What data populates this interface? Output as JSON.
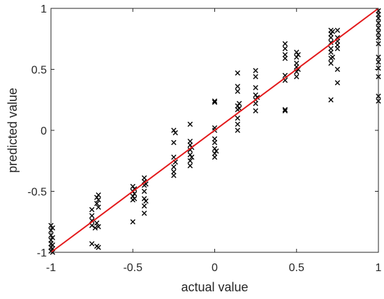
{
  "chart_data": {
    "type": "scatter",
    "title": "",
    "xlabel": "actual value",
    "ylabel": "predicted value",
    "xlim": [
      -1,
      1
    ],
    "ylim": [
      -1,
      1
    ],
    "xticks": [
      -1,
      -0.5,
      0,
      0.5,
      1
    ],
    "yticks": [
      -1,
      -0.5,
      0,
      0.5,
      1
    ],
    "xtick_labels": [
      "-1",
      "-0.5",
      "0",
      "0.5",
      "1"
    ],
    "ytick_labels": [
      "-1",
      "-0.5",
      "0",
      "0.5",
      "1"
    ],
    "grid": false,
    "marker": "x",
    "marker_color": "#000000",
    "reference_line": {
      "from": [
        -1,
        -1
      ],
      "to": [
        1,
        1
      ],
      "color": "#e31a1c"
    },
    "series": [
      {
        "points": [
          [
            -1,
            -0.78
          ],
          [
            -1,
            -0.82
          ],
          [
            -1,
            -0.86
          ],
          [
            -1,
            -0.9
          ],
          [
            -1,
            -0.93
          ],
          [
            -1,
            -0.96
          ],
          [
            -1,
            -0.99
          ],
          [
            -0.99,
            -0.8
          ],
          [
            -0.99,
            -0.88
          ],
          [
            -0.99,
            -0.94
          ],
          [
            -0.99,
            -0.97
          ],
          [
            -0.99,
            -1.0
          ],
          [
            -0.75,
            -0.65
          ],
          [
            -0.75,
            -0.7
          ],
          [
            -0.75,
            -0.74
          ],
          [
            -0.75,
            -0.78
          ],
          [
            -0.75,
            -0.93
          ],
          [
            -0.73,
            -0.8
          ],
          [
            -0.72,
            -0.55
          ],
          [
            -0.72,
            -0.6
          ],
          [
            -0.72,
            -0.76
          ],
          [
            -0.72,
            -0.95
          ],
          [
            -0.71,
            -0.53
          ],
          [
            -0.71,
            -0.57
          ],
          [
            -0.71,
            -0.63
          ],
          [
            -0.71,
            -0.79
          ],
          [
            -0.71,
            -0.96
          ],
          [
            -0.5,
            -0.46
          ],
          [
            -0.5,
            -0.5
          ],
          [
            -0.5,
            -0.54
          ],
          [
            -0.5,
            -0.57
          ],
          [
            -0.5,
            -0.75
          ],
          [
            -0.49,
            -0.48
          ],
          [
            -0.49,
            -0.52
          ],
          [
            -0.49,
            -0.56
          ],
          [
            -0.43,
            -0.39
          ],
          [
            -0.43,
            -0.42
          ],
          [
            -0.43,
            -0.45
          ],
          [
            -0.43,
            -0.5
          ],
          [
            -0.43,
            -0.56
          ],
          [
            -0.43,
            -0.62
          ],
          [
            -0.43,
            -0.68
          ],
          [
            -0.42,
            -0.44
          ],
          [
            -0.42,
            -0.58
          ],
          [
            -0.25,
            0.0
          ],
          [
            -0.25,
            -0.1
          ],
          [
            -0.25,
            -0.22
          ],
          [
            -0.25,
            -0.3
          ],
          [
            -0.25,
            -0.34
          ],
          [
            -0.25,
            -0.37
          ],
          [
            -0.24,
            -0.02
          ],
          [
            -0.24,
            -0.26
          ],
          [
            -0.15,
            0.05
          ],
          [
            -0.15,
            -0.09
          ],
          [
            -0.15,
            -0.12
          ],
          [
            -0.15,
            -0.16
          ],
          [
            -0.15,
            -0.2
          ],
          [
            -0.15,
            -0.25
          ],
          [
            -0.15,
            -0.29
          ],
          [
            -0.14,
            -0.14
          ],
          [
            -0.14,
            -0.22
          ],
          [
            0.0,
            0.24
          ],
          [
            0.0,
            0.23
          ],
          [
            0.0,
            0.02
          ],
          [
            0.0,
            0.0
          ],
          [
            0.0,
            -0.07
          ],
          [
            0.0,
            -0.1
          ],
          [
            0.0,
            -0.15
          ],
          [
            0.0,
            -0.19
          ],
          [
            0.0,
            -0.22
          ],
          [
            0.01,
            -0.17
          ],
          [
            0.14,
            0.47
          ],
          [
            0.14,
            0.36
          ],
          [
            0.14,
            0.32
          ],
          [
            0.14,
            0.2
          ],
          [
            0.14,
            0.17
          ],
          [
            0.14,
            0.1
          ],
          [
            0.14,
            0.05
          ],
          [
            0.14,
            0.0
          ],
          [
            0.15,
            0.18
          ],
          [
            0.15,
            0.22
          ],
          [
            0.25,
            0.49
          ],
          [
            0.25,
            0.44
          ],
          [
            0.25,
            0.35
          ],
          [
            0.25,
            0.29
          ],
          [
            0.25,
            0.25
          ],
          [
            0.25,
            0.22
          ],
          [
            0.25,
            0.16
          ],
          [
            0.26,
            0.27
          ],
          [
            0.43,
            0.71
          ],
          [
            0.43,
            0.67
          ],
          [
            0.43,
            0.62
          ],
          [
            0.43,
            0.59
          ],
          [
            0.43,
            0.45
          ],
          [
            0.43,
            0.41
          ],
          [
            0.43,
            0.17
          ],
          [
            0.43,
            0.16
          ],
          [
            0.5,
            0.64
          ],
          [
            0.5,
            0.6
          ],
          [
            0.5,
            0.55
          ],
          [
            0.5,
            0.52
          ],
          [
            0.5,
            0.48
          ],
          [
            0.5,
            0.44
          ],
          [
            0.51,
            0.62
          ],
          [
            0.51,
            0.5
          ],
          [
            0.71,
            0.82
          ],
          [
            0.71,
            0.79
          ],
          [
            0.71,
            0.76
          ],
          [
            0.71,
            0.72
          ],
          [
            0.71,
            0.67
          ],
          [
            0.71,
            0.64
          ],
          [
            0.71,
            0.59
          ],
          [
            0.71,
            0.55
          ],
          [
            0.71,
            0.25
          ],
          [
            0.72,
            0.81
          ],
          [
            0.72,
            0.6
          ],
          [
            0.75,
            0.82
          ],
          [
            0.75,
            0.76
          ],
          [
            0.75,
            0.73
          ],
          [
            0.75,
            0.7
          ],
          [
            0.75,
            0.67
          ],
          [
            0.75,
            0.5
          ],
          [
            0.75,
            0.39
          ],
          [
            1.0,
            0.98
          ],
          [
            1.0,
            0.95
          ],
          [
            1.0,
            0.92
          ],
          [
            1.0,
            0.88
          ],
          [
            1.0,
            0.84
          ],
          [
            1.0,
            0.8
          ],
          [
            1.0,
            0.76
          ],
          [
            1.0,
            0.71
          ],
          [
            1.0,
            0.6
          ],
          [
            1.0,
            0.56
          ],
          [
            1.0,
            0.51
          ],
          [
            1.0,
            0.44
          ],
          [
            1.0,
            0.28
          ],
          [
            1.0,
            0.24
          ]
        ]
      }
    ]
  }
}
